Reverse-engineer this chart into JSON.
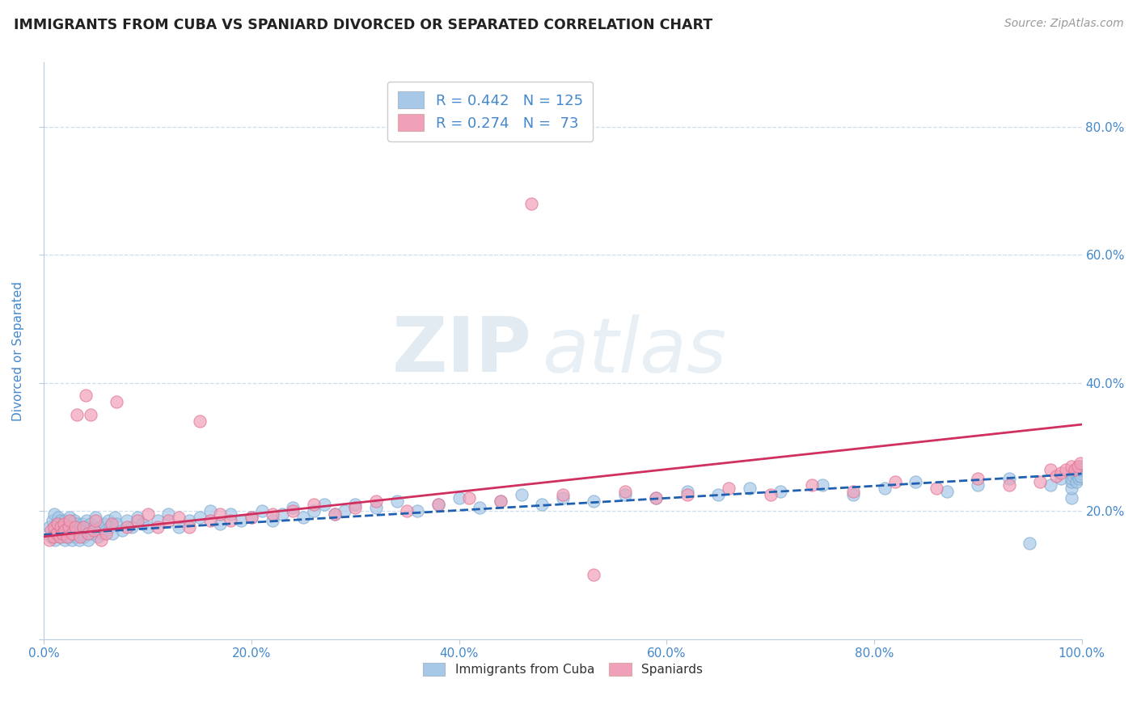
{
  "title": "IMMIGRANTS FROM CUBA VS SPANIARD DIVORCED OR SEPARATED CORRELATION CHART",
  "source_text": "Source: ZipAtlas.com",
  "ylabel": "Divorced or Separated",
  "legend_labels": [
    "Immigrants from Cuba",
    "Spaniards"
  ],
  "r_blue": 0.442,
  "n_blue": 125,
  "r_pink": 0.274,
  "n_pink": 73,
  "blue_color": "#a8c8e8",
  "pink_color": "#f0a0b8",
  "blue_edge_color": "#7aaad0",
  "pink_edge_color": "#e07090",
  "blue_line_color": "#2060b0",
  "pink_line_color": "#d03060",
  "axis_label_color": "#4488cc",
  "title_color": "#222222",
  "background_color": "#ffffff",
  "grid_color": "#ccddee",
  "watermark_zip": "ZIP",
  "watermark_atlas": "atlas",
  "xlim": [
    0.0,
    1.0
  ],
  "ylim": [
    0.0,
    0.9
  ],
  "blue_x": [
    0.005,
    0.007,
    0.008,
    0.01,
    0.01,
    0.011,
    0.012,
    0.013,
    0.014,
    0.015,
    0.015,
    0.016,
    0.017,
    0.018,
    0.019,
    0.02,
    0.02,
    0.021,
    0.022,
    0.023,
    0.024,
    0.025,
    0.025,
    0.026,
    0.027,
    0.028,
    0.029,
    0.03,
    0.031,
    0.032,
    0.033,
    0.034,
    0.035,
    0.036,
    0.037,
    0.038,
    0.039,
    0.04,
    0.041,
    0.042,
    0.043,
    0.044,
    0.045,
    0.046,
    0.048,
    0.05,
    0.052,
    0.054,
    0.056,
    0.058,
    0.06,
    0.062,
    0.064,
    0.066,
    0.068,
    0.07,
    0.075,
    0.08,
    0.085,
    0.09,
    0.095,
    0.1,
    0.11,
    0.12,
    0.13,
    0.14,
    0.15,
    0.16,
    0.17,
    0.18,
    0.19,
    0.2,
    0.21,
    0.22,
    0.23,
    0.24,
    0.25,
    0.26,
    0.27,
    0.28,
    0.29,
    0.3,
    0.32,
    0.34,
    0.36,
    0.38,
    0.4,
    0.42,
    0.44,
    0.46,
    0.48,
    0.5,
    0.53,
    0.56,
    0.59,
    0.62,
    0.65,
    0.68,
    0.71,
    0.75,
    0.78,
    0.81,
    0.84,
    0.87,
    0.9,
    0.93,
    0.95,
    0.97,
    0.98,
    0.99,
    0.99,
    0.99,
    0.99,
    0.992,
    0.993,
    0.995,
    0.996,
    0.997,
    0.998,
    0.999,
    0.999,
    0.999,
    0.999,
    0.999,
    0.999
  ],
  "blue_y": [
    0.175,
    0.16,
    0.185,
    0.17,
    0.195,
    0.155,
    0.18,
    0.165,
    0.19,
    0.16,
    0.175,
    0.185,
    0.17,
    0.16,
    0.175,
    0.155,
    0.185,
    0.17,
    0.165,
    0.18,
    0.16,
    0.175,
    0.19,
    0.165,
    0.155,
    0.175,
    0.185,
    0.16,
    0.17,
    0.18,
    0.165,
    0.155,
    0.175,
    0.165,
    0.18,
    0.17,
    0.16,
    0.175,
    0.185,
    0.165,
    0.155,
    0.17,
    0.18,
    0.165,
    0.175,
    0.19,
    0.16,
    0.175,
    0.165,
    0.18,
    0.17,
    0.185,
    0.175,
    0.165,
    0.19,
    0.18,
    0.17,
    0.185,
    0.175,
    0.19,
    0.18,
    0.175,
    0.185,
    0.195,
    0.175,
    0.185,
    0.19,
    0.2,
    0.18,
    0.195,
    0.185,
    0.19,
    0.2,
    0.185,
    0.195,
    0.205,
    0.19,
    0.2,
    0.21,
    0.195,
    0.2,
    0.21,
    0.205,
    0.215,
    0.2,
    0.21,
    0.22,
    0.205,
    0.215,
    0.225,
    0.21,
    0.22,
    0.215,
    0.225,
    0.22,
    0.23,
    0.225,
    0.235,
    0.23,
    0.24,
    0.225,
    0.235,
    0.245,
    0.23,
    0.24,
    0.25,
    0.15,
    0.24,
    0.25,
    0.22,
    0.235,
    0.245,
    0.25,
    0.255,
    0.26,
    0.245,
    0.255,
    0.25,
    0.26,
    0.265,
    0.255,
    0.26,
    0.27,
    0.255,
    0.265
  ],
  "pink_x": [
    0.005,
    0.007,
    0.009,
    0.01,
    0.012,
    0.013,
    0.015,
    0.016,
    0.018,
    0.019,
    0.02,
    0.022,
    0.024,
    0.025,
    0.027,
    0.03,
    0.032,
    0.035,
    0.038,
    0.04,
    0.043,
    0.045,
    0.048,
    0.05,
    0.055,
    0.06,
    0.065,
    0.07,
    0.08,
    0.09,
    0.1,
    0.11,
    0.12,
    0.13,
    0.14,
    0.15,
    0.16,
    0.17,
    0.18,
    0.2,
    0.22,
    0.24,
    0.26,
    0.28,
    0.3,
    0.32,
    0.35,
    0.38,
    0.41,
    0.44,
    0.47,
    0.5,
    0.53,
    0.56,
    0.59,
    0.62,
    0.66,
    0.7,
    0.74,
    0.78,
    0.82,
    0.86,
    0.9,
    0.93,
    0.96,
    0.97,
    0.975,
    0.98,
    0.985,
    0.99,
    0.993,
    0.996,
    0.999
  ],
  "pink_y": [
    0.155,
    0.17,
    0.16,
    0.175,
    0.165,
    0.18,
    0.16,
    0.175,
    0.165,
    0.18,
    0.17,
    0.16,
    0.175,
    0.185,
    0.165,
    0.175,
    0.35,
    0.16,
    0.175,
    0.38,
    0.165,
    0.35,
    0.17,
    0.185,
    0.155,
    0.165,
    0.18,
    0.37,
    0.175,
    0.185,
    0.195,
    0.175,
    0.185,
    0.19,
    0.175,
    0.34,
    0.185,
    0.195,
    0.185,
    0.19,
    0.195,
    0.2,
    0.21,
    0.195,
    0.205,
    0.215,
    0.2,
    0.21,
    0.22,
    0.215,
    0.68,
    0.225,
    0.1,
    0.23,
    0.22,
    0.225,
    0.235,
    0.225,
    0.24,
    0.23,
    0.245,
    0.235,
    0.25,
    0.24,
    0.245,
    0.265,
    0.255,
    0.26,
    0.265,
    0.27,
    0.265,
    0.27,
    0.275
  ]
}
